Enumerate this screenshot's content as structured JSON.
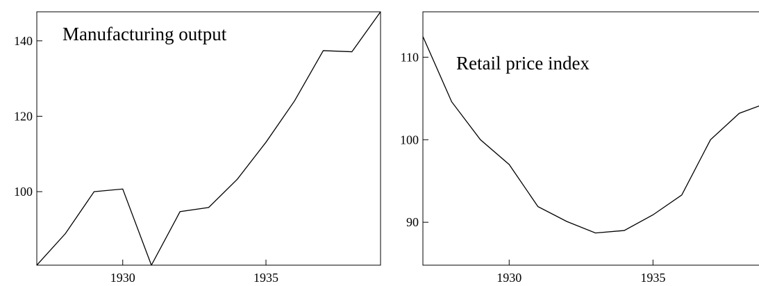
{
  "chart_data": [
    {
      "type": "line",
      "title": "Manufacturing output",
      "x": [
        1927,
        1928,
        1929,
        1930,
        1931,
        1932,
        1933,
        1934,
        1935,
        1936,
        1937,
        1938,
        1939
      ],
      "values": [
        80.5,
        88.9,
        100,
        100.7,
        80.5,
        94.7,
        95.8,
        103.3,
        113.1,
        124.1,
        137.4,
        137.1,
        147.7
      ],
      "color": "#000000",
      "xlim": [
        1927,
        1939
      ],
      "xticks": [
        1930,
        1935
      ],
      "ylim": [
        80.5,
        147.7
      ],
      "yticks": [
        100,
        120,
        140
      ]
    },
    {
      "type": "line",
      "title": "Retail price index",
      "x": [
        1927,
        1928,
        1929,
        1930,
        1931,
        1932,
        1933,
        1934,
        1935,
        1936,
        1937,
        1938,
        1939
      ],
      "values": [
        112.5,
        104.6,
        100,
        97,
        91.9,
        90.1,
        88.7,
        89,
        90.9,
        93.3,
        100,
        103.2,
        104.5
      ],
      "color": "#000000",
      "xlim": [
        1927,
        1939
      ],
      "xticks": [
        1930,
        1935
      ],
      "ylim": [
        84.8,
        115.5
      ],
      "yticks": [
        90,
        100,
        110
      ]
    }
  ]
}
